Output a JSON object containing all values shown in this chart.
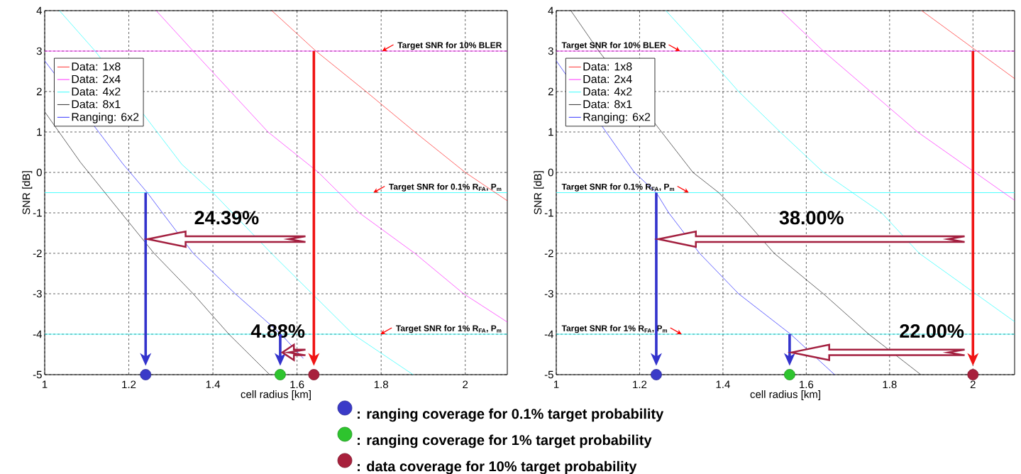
{
  "chart_data": [
    {
      "type": "line",
      "xlabel": "cell radius [km]",
      "ylabel": "SNR [dB]",
      "xlim": [
        1,
        2.1
      ],
      "ylim": [
        -5,
        4
      ],
      "xticks": [
        1,
        1.2,
        1.4,
        1.6,
        1.8,
        2
      ],
      "yticks": [
        -5,
        -4,
        -3,
        -2,
        -1,
        0,
        1,
        2,
        3,
        4
      ],
      "grid": true,
      "legend": "top left",
      "series": [
        {
          "name": "Data: 1x8",
          "color": "#ff0000",
          "x": [
            1.54,
            1.645,
            1.764,
            1.88,
            2.0,
            2.1
          ],
          "values": [
            4,
            3,
            2,
            1,
            0,
            -0.7
          ]
        },
        {
          "name": "Data: 2x4",
          "color": "#ff00ff",
          "x": [
            1.265,
            1.353,
            1.442,
            1.531,
            1.651,
            1.748,
            1.88,
            1.996,
            2.1
          ],
          "values": [
            4,
            3,
            2,
            1,
            0,
            -1,
            -2,
            -3,
            -3.7
          ]
        },
        {
          "name": "Data: 4x2",
          "color": "#00ffff",
          "x": [
            1.035,
            1.12,
            1.326,
            1.4,
            1.539,
            1.733,
            1.876
          ],
          "values": [
            4,
            3,
            0.2,
            -0.5,
            -2,
            -4,
            -5
          ]
        },
        {
          "name": "Data: 8x1",
          "color": "#000000",
          "x": [
            1.0,
            1.085,
            1.182,
            1.26,
            1.353,
            1.438,
            1.535
          ],
          "values": [
            1.5,
            0.25,
            -1,
            -2,
            -3,
            -4,
            -5
          ]
        },
        {
          "name": "Ranging: 6x2",
          "color": "#0000ff",
          "x": [
            1.0,
            1.186,
            1.244,
            1.28,
            1.353,
            1.453,
            1.562,
            1.615
          ],
          "values": [
            2.76,
            0.21,
            -0.5,
            -1,
            -2,
            -3,
            -4,
            -4.6
          ]
        },
        {
          "type": "scatter",
          "marker": "circle",
          "color": "#3a3ac8",
          "x": [
            1.24
          ],
          "values": [
            -5
          ]
        },
        {
          "type": "scatter",
          "marker": "circle",
          "color": "#2ec42e",
          "x": [
            1.56
          ],
          "values": [
            -5
          ]
        },
        {
          "type": "scatter",
          "marker": "circle",
          "color": "#a8203c",
          "x": [
            1.64
          ],
          "values": [
            -5
          ]
        }
      ],
      "ref_lines": [
        {
          "axis": "y",
          "value": 3,
          "label": "Target SNR for 10% BLER",
          "color": "#ff00ff"
        },
        {
          "axis": "y",
          "value": -0.5,
          "label": "Target SNR for 0.1% R$_{FA}$, P$_{m}$",
          "color": "#00ffff"
        },
        {
          "axis": "y",
          "value": -4,
          "label": "Target SNR for 1% R$_{FA}$, P$_{m}$",
          "color": "#00ffff"
        }
      ],
      "annotations": [
        "24.39%",
        "4.88%",
        ": ranging coverage for 0.1% target probability",
        ": ranging coverage for 1% target probability",
        ": data coverage for 10% target probability"
      ]
    },
    {
      "type": "line",
      "xlabel": "cell radius [km]",
      "ylabel": "SNR [dB]",
      "xlim": [
        1,
        2.1
      ],
      "ylim": [
        -5,
        4
      ],
      "xticks": [
        1,
        1.2,
        1.4,
        1.6,
        1.8,
        2
      ],
      "yticks": [
        -5,
        -4,
        -3,
        -2,
        -1,
        0,
        1,
        2,
        3,
        4
      ],
      "grid": true,
      "legend": "top left",
      "series": [
        {
          "name": "Data: 1x8",
          "color": "#ff0000",
          "x": [
            1.877,
            2.1
          ],
          "values": [
            4,
            2.32
          ]
        },
        {
          "name": "Data: 2x4",
          "color": "#ff00ff",
          "x": [
            1.539,
            1.641,
            1.754,
            1.867,
            2.1
          ],
          "values": [
            4,
            3,
            2,
            1,
            -0.69
          ]
        },
        {
          "name": "Data: 4x2",
          "color": "#00ffff",
          "x": [
            1.263,
            1.352,
            1.4375,
            1.5375,
            1.641,
            1.781,
            1.871,
            2.1
          ],
          "values": [
            4,
            3,
            2,
            1,
            0,
            -1,
            -2,
            -3.69
          ]
        },
        {
          "name": "Data: 8x1",
          "color": "#000000",
          "x": [
            1.035,
            1.102,
            1.328,
            1.39,
            1.4375,
            1.523,
            1.641,
            1.75,
            1.875
          ],
          "values": [
            4,
            3,
            0,
            -0.5,
            -1,
            -2,
            -3,
            -4,
            -5
          ]
        },
        {
          "name": "Ranging: 6x2",
          "color": "#0000ff",
          "x": [
            1.0,
            1.1875,
            1.24,
            1.27,
            1.344,
            1.4375,
            1.5625,
            1.668
          ],
          "values": [
            2.76,
            0,
            -0.5,
            -1,
            -2,
            -3,
            -4,
            -5
          ]
        },
        {
          "type": "scatter",
          "marker": "circle",
          "color": "#3a3ac8",
          "x": [
            1.24
          ],
          "values": [
            -5
          ]
        },
        {
          "type": "scatter",
          "marker": "circle",
          "color": "#2ec42e",
          "x": [
            1.56
          ],
          "values": [
            -5
          ]
        },
        {
          "type": "scatter",
          "marker": "circle",
          "color": "#a8203c",
          "x": [
            2.0
          ],
          "values": [
            -5
          ]
        }
      ],
      "ref_lines": [
        {
          "axis": "y",
          "value": 3,
          "label": "Target SNR for 10% BLER",
          "color": "#ff00ff"
        },
        {
          "axis": "y",
          "value": -0.5,
          "label": "Target SNR for 0.1% R$_{FA}$, P$_{m}$",
          "color": "#00ffff"
        },
        {
          "axis": "y",
          "value": -4,
          "label": "Target SNR for 1% R$_{FA}$, P$_{m}$",
          "color": "#00ffff"
        }
      ],
      "annotations": [
        "38.00%",
        "22.00%"
      ]
    }
  ]
}
